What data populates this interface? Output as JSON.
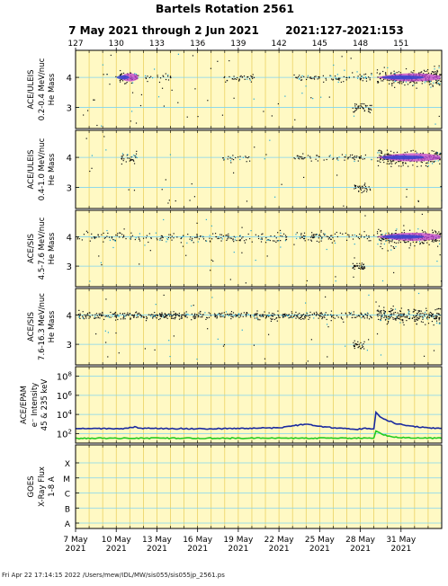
{
  "title": "Bartels Rotation 2561",
  "subtitle": "7 May 2021 through 2 Jun 2021",
  "doy_range": "2021:127-2021:153",
  "footer": "Fri Apr 22 17:14:15 2022   /Users/mew/IDL/MW/sis055/sis055jp_2561.ps",
  "colors": {
    "panel_bg": "#fff9c4",
    "day_line": "#e8cc55",
    "grid_line": "#7fd4f0",
    "point": "#111111",
    "point_cyan": "#1aa6d8",
    "core_blue": "#3344cc",
    "core_magenta": "#c040d0",
    "electron_high": "#1a2aa0",
    "electron_low": "#22cc22"
  },
  "chart_data": {
    "type": "scatter",
    "x_axis": {
      "top_ticks": [
        "127",
        "130",
        "133",
        "136",
        "139",
        "142",
        "145",
        "148",
        "151"
      ],
      "bottom_ticks": [
        {
          "day": "7 May",
          "year": "2021"
        },
        {
          "day": "10 May",
          "year": "2021"
        },
        {
          "day": "13 May",
          "year": "2021"
        },
        {
          "day": "16 May",
          "year": "2021"
        },
        {
          "day": "19 May",
          "year": "2021"
        },
        {
          "day": "22 May",
          "year": "2021"
        },
        {
          "day": "25 May",
          "year": "2021"
        },
        {
          "day": "28 May",
          "year": "2021"
        },
        {
          "day": "31 May",
          "year": "2021"
        }
      ],
      "xlim": [
        127,
        154
      ]
    },
    "panels": [
      {
        "instrument": "ACE/ULEIS",
        "energy": "0.2-0.4 MeV/nuc",
        "ylabel": "He Mass",
        "yticks": [
          "4",
          "3"
        ],
        "ylim": [
          2.3,
          4.9
        ],
        "kind": "mass",
        "seed": 11,
        "background_density": 0.8,
        "clusters": [
          {
            "x0": 130.2,
            "x1": 131.6,
            "density": 9,
            "spread": 0.22,
            "core": "magenta"
          },
          {
            "x0": 132.0,
            "x1": 134.0,
            "density": 2.5,
            "spread": 0.12
          },
          {
            "x0": 137.8,
            "x1": 140.2,
            "density": 3.5,
            "spread": 0.12
          },
          {
            "x0": 143.0,
            "x1": 148.8,
            "density": 3.5,
            "spread": 0.13
          },
          {
            "x0": 149.2,
            "x1": 153.9,
            "density": 14,
            "spread": 0.28,
            "core": "magenta"
          }
        ],
        "he3_patches": [
          {
            "x0": 147.4,
            "x1": 148.8,
            "density": 5
          }
        ]
      },
      {
        "instrument": "ACE/ULEIS",
        "energy": "0.4-1.0 MeV/nuc",
        "ylabel": "He Mass",
        "yticks": [
          "4",
          "3"
        ],
        "ylim": [
          2.3,
          4.9
        ],
        "kind": "mass",
        "seed": 23,
        "background_density": 0.5,
        "clusters": [
          {
            "x0": 130.3,
            "x1": 131.5,
            "density": 7,
            "spread": 0.16
          },
          {
            "x0": 137.8,
            "x1": 140.0,
            "density": 2.5,
            "spread": 0.11
          },
          {
            "x0": 143.0,
            "x1": 148.8,
            "density": 3,
            "spread": 0.12
          },
          {
            "x0": 149.2,
            "x1": 153.9,
            "density": 13,
            "spread": 0.24,
            "core": "magenta"
          }
        ],
        "he3_patches": [
          {
            "x0": 147.4,
            "x1": 148.8,
            "density": 4
          }
        ]
      },
      {
        "instrument": "ACE/SIS",
        "energy": "4.5-7.6 MeV/nuc",
        "ylabel": "He Mass",
        "yticks": [
          "4",
          "3"
        ],
        "ylim": [
          2.3,
          4.9
        ],
        "kind": "mass",
        "seed": 37,
        "background_density": 0.7,
        "clusters": [
          {
            "x0": 127.0,
            "x1": 148.8,
            "density": 3,
            "spread": 0.18
          },
          {
            "x0": 143.5,
            "x1": 145.5,
            "density": 3,
            "spread": 0.2
          },
          {
            "x0": 149.2,
            "x1": 153.9,
            "density": 12,
            "spread": 0.3,
            "core": "magenta"
          }
        ],
        "he3_patches": [
          {
            "x0": 147.4,
            "x1": 148.3,
            "density": 7
          }
        ]
      },
      {
        "instrument": "ACE/SIS",
        "energy": "7.6-16.3 MeV/nuc",
        "ylabel": "He Mass",
        "yticks": [
          "4",
          "3"
        ],
        "ylim": [
          2.3,
          4.9
        ],
        "kind": "mass",
        "seed": 53,
        "background_density": 0.7,
        "clusters": [
          {
            "x0": 127.0,
            "x1": 148.8,
            "density": 6,
            "spread": 0.13
          },
          {
            "x0": 149.2,
            "x1": 153.9,
            "density": 12,
            "spread": 0.25
          }
        ],
        "he3_patches": [
          {
            "x0": 147.4,
            "x1": 148.3,
            "density": 5
          }
        ]
      },
      {
        "instrument": "ACE/EPAM",
        "ylabel_line1": "e⁻ Intensity",
        "ylabel_line2": "45 & 235 keV",
        "kind": "flux",
        "ylim_log": [
          1,
          9
        ],
        "yticks": [
          "10^8",
          "10^6",
          "10^4",
          "10^2"
        ],
        "series": [
          {
            "name": "45 keV",
            "color": "#1a2aa0",
            "points": [
              [
                127,
                2.5
              ],
              [
                130.5,
                2.52
              ],
              [
                131.5,
                2.7
              ],
              [
                131.7,
                2.55
              ],
              [
                134,
                2.52
              ],
              [
                137,
                2.5
              ],
              [
                140,
                2.55
              ],
              [
                142,
                2.6
              ],
              [
                143,
                2.8
              ],
              [
                144,
                3.0
              ],
              [
                145,
                2.75
              ],
              [
                146,
                2.62
              ],
              [
                147,
                2.55
              ],
              [
                147.8,
                2.45
              ],
              [
                148.5,
                2.55
              ],
              [
                149.0,
                2.5
              ],
              [
                149.15,
                4.2
              ],
              [
                149.6,
                3.6
              ],
              [
                150.5,
                3.1
              ],
              [
                151.5,
                2.8
              ],
              [
                153,
                2.6
              ],
              [
                154,
                2.55
              ]
            ]
          },
          {
            "name": "235 keV",
            "color": "#22cc22",
            "points": [
              [
                127,
                1.5
              ],
              [
                140,
                1.52
              ],
              [
                148.8,
                1.52
              ],
              [
                149.0,
                1.55
              ],
              [
                149.15,
                2.3
              ],
              [
                149.6,
                1.9
              ],
              [
                150.5,
                1.6
              ],
              [
                154,
                1.5
              ]
            ]
          }
        ]
      },
      {
        "instrument": "GOES",
        "ylabel_line1": "X-Ray Flux",
        "ylabel_line2": "1-8 A",
        "kind": "xray",
        "yticks": [
          "X",
          "M",
          "C",
          "B",
          "A"
        ]
      }
    ]
  }
}
